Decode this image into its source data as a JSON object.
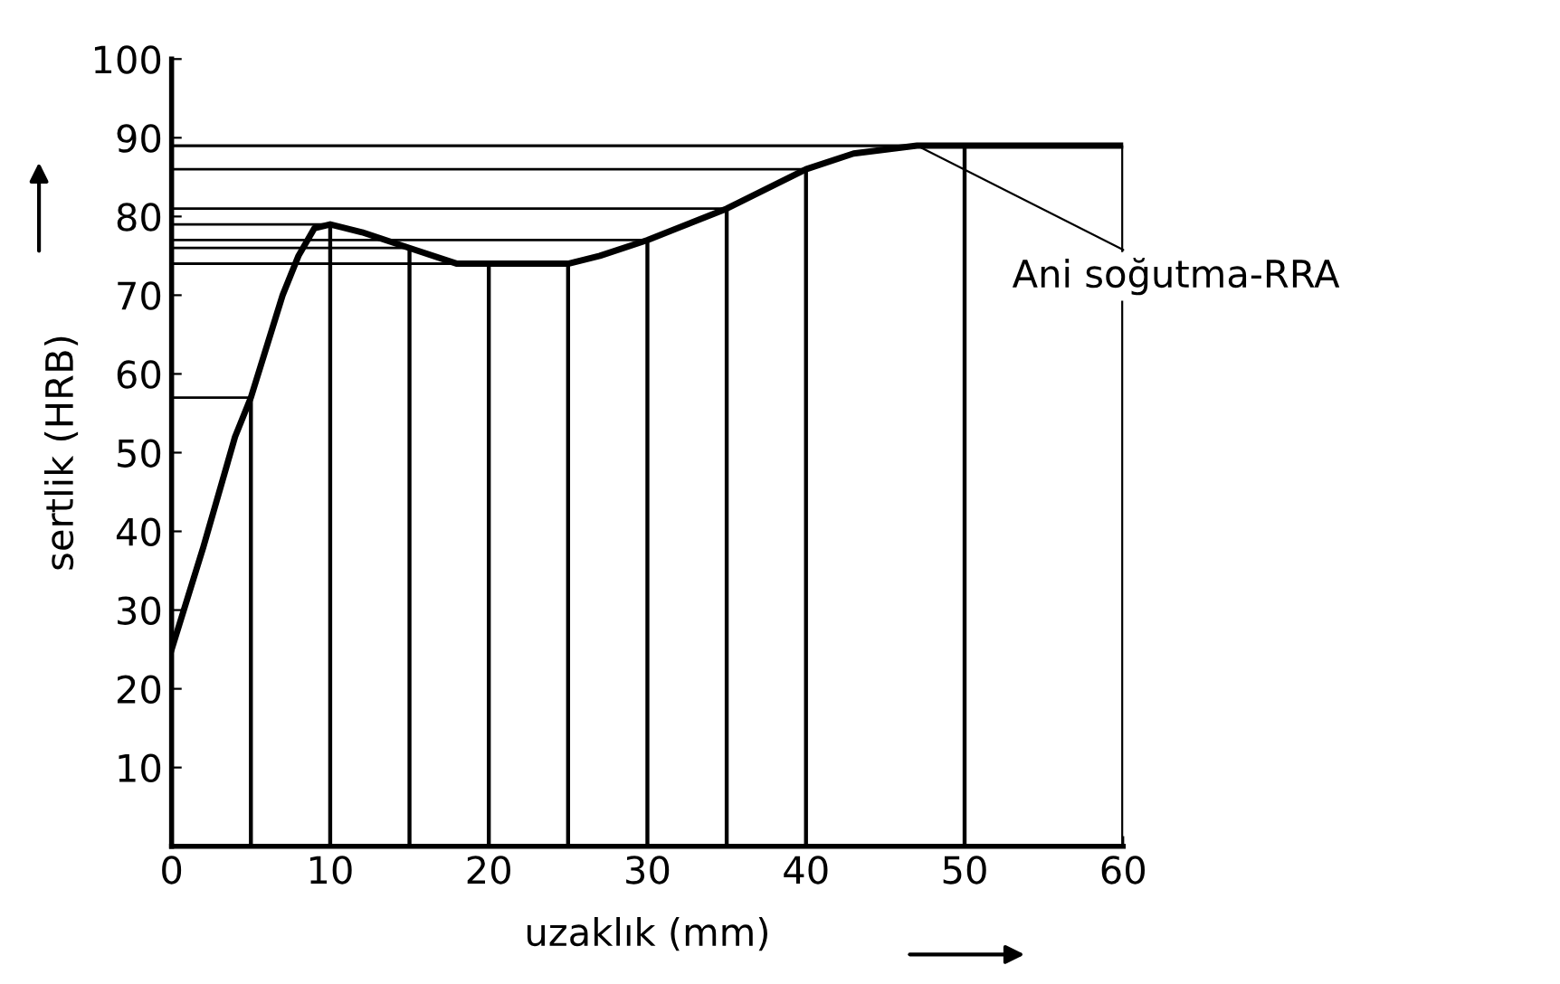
{
  "chart_data": {
    "type": "line",
    "xlabel": "uzaklık (mm)",
    "ylabel": "sertlik (HRB)",
    "series": [
      {
        "color": "#000000",
        "x": [
          0,
          2,
          4,
          5,
          7,
          8,
          9,
          10,
          12,
          15,
          18,
          20,
          25,
          27,
          30,
          35,
          40,
          43,
          47,
          60
        ],
        "values": [
          25,
          38,
          52,
          57,
          70,
          75,
          78.5,
          79,
          78,
          76,
          74,
          74,
          74,
          75,
          77,
          81,
          86,
          88,
          89,
          89
        ]
      },
      {
        "type": "bar",
        "color": "#000000",
        "x": [
          5,
          10,
          15,
          20,
          25,
          30,
          35,
          40,
          50,
          60
        ],
        "values": [
          57,
          79,
          76,
          74,
          74,
          77,
          81,
          86,
          89,
          89
        ],
        "xerrors": [
          [
            0,
            5
          ],
          [
            0,
            10
          ],
          [
            0,
            15
          ],
          [
            0,
            20
          ],
          [
            0,
            25
          ],
          [
            0,
            30
          ],
          [
            0,
            35
          ],
          [
            0,
            40
          ],
          [
            0,
            50
          ],
          [
            0,
            60
          ]
        ]
      }
    ],
    "annotations": [
      {
        "text": "Ani soğutma-RRA",
        "x": 47,
        "y": 89
      }
    ],
    "xlim": [
      0,
      60
    ],
    "ylim": [
      0,
      100
    ],
    "xticks": [
      0,
      10,
      20,
      30,
      40,
      50,
      60
    ],
    "yticks": [
      {
        "value": 0,
        "label": null
      },
      10,
      20,
      30,
      40,
      50,
      60,
      70,
      80,
      90,
      100
    ],
    "grid": false,
    "legend": false,
    "marker": "none",
    "line_style": "solid"
  }
}
